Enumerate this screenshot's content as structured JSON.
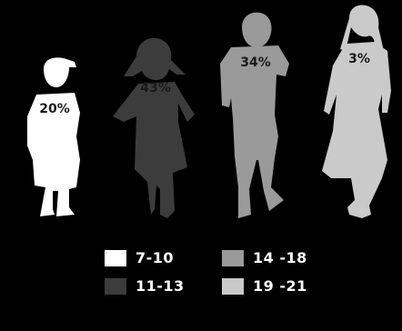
{
  "chart_data": {
    "type": "pictograph",
    "title": "",
    "categories": [
      "7-10",
      "11-13",
      "14 -18",
      "19 -21"
    ],
    "values": [
      20,
      43,
      34,
      3
    ],
    "value_labels": [
      "20%",
      "43%",
      "34%",
      "3%"
    ],
    "colors": [
      "#ffffff",
      "#3c3c3c",
      "#9a9a9a",
      "#cacaca"
    ],
    "legend": {
      "placement": "bottom",
      "entries": [
        {
          "label": "7-10",
          "color": "#ffffff"
        },
        {
          "label": "11-13",
          "color": "#3c3c3c"
        },
        {
          "label": "14 -18",
          "color": "#9a9a9a"
        },
        {
          "label": "19 -21",
          "color": "#cacaca"
        }
      ]
    },
    "marks": [
      "boy-silhouette-icon",
      "girl-silhouette-icon",
      "teen-boy-silhouette-icon",
      "young-woman-silhouette-icon"
    ]
  }
}
